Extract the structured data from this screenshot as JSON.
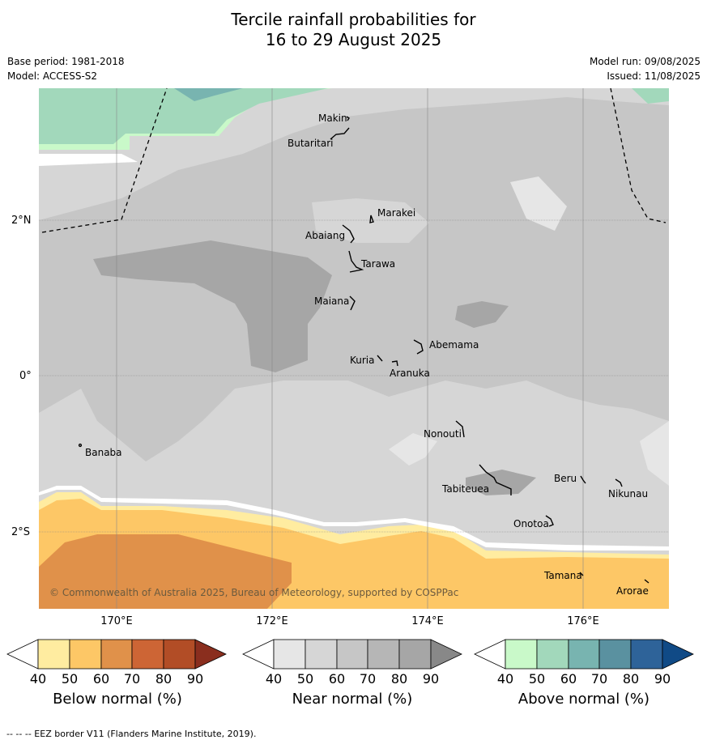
{
  "title_line1": "Tercile rainfall probabilities for",
  "title_line2": "16 to 29 August 2025",
  "base_period": "Base period: 1981-2018",
  "model": "Model: ACCESS-S2",
  "model_run": "Model run: 09/08/2025",
  "issued": "Issued: 11/08/2025",
  "copyright": "© Commonwealth of Australia 2025, Bureau of Meteorology, supported by COSPPac",
  "lat_labels": [
    "2°N",
    "0°",
    "2°S"
  ],
  "lon_labels": [
    "170°E",
    "172°E",
    "174°E",
    "176°E"
  ],
  "islands": [
    {
      "name": "Makin"
    },
    {
      "name": "Butaritari"
    },
    {
      "name": "Marakei"
    },
    {
      "name": "Abaiang"
    },
    {
      "name": "Tarawa"
    },
    {
      "name": "Maiana"
    },
    {
      "name": "Abemama"
    },
    {
      "name": "Kuria"
    },
    {
      "name": "Aranuka"
    },
    {
      "name": "Nonouti"
    },
    {
      "name": "Banaba"
    },
    {
      "name": "Tabiteuea"
    },
    {
      "name": "Beru"
    },
    {
      "name": "Nikunau"
    },
    {
      "name": "Onotoa"
    },
    {
      "name": "Tamana"
    },
    {
      "name": "Arorae"
    }
  ],
  "colorbars": [
    {
      "label": "Below normal (%)",
      "ticks": [
        "40",
        "50",
        "60",
        "70",
        "80",
        "90"
      ],
      "colors": [
        "#ffffff",
        "#ffeca0",
        "#fdc766",
        "#e0914a",
        "#cd6535",
        "#b24d26",
        "#8a2e1e"
      ]
    },
    {
      "label": "Near normal (%)",
      "ticks": [
        "40",
        "50",
        "60",
        "70",
        "80",
        "90"
      ],
      "colors": [
        "#ffffff",
        "#e6e6e6",
        "#d6d6d6",
        "#c6c6c6",
        "#b6b6b6",
        "#a6a6a6",
        "#888888"
      ]
    },
    {
      "label": "Above normal (%)",
      "ticks": [
        "40",
        "50",
        "60",
        "70",
        "80",
        "90"
      ],
      "colors": [
        "#ffffff",
        "#c9f9c9",
        "#a2d8bb",
        "#78b4b0",
        "#5a91a0",
        "#2e6399",
        "#104a86"
      ]
    }
  ],
  "footer": "--  --  -- EEZ border V11 (Flanders Marine Institute, 2019)."
}
